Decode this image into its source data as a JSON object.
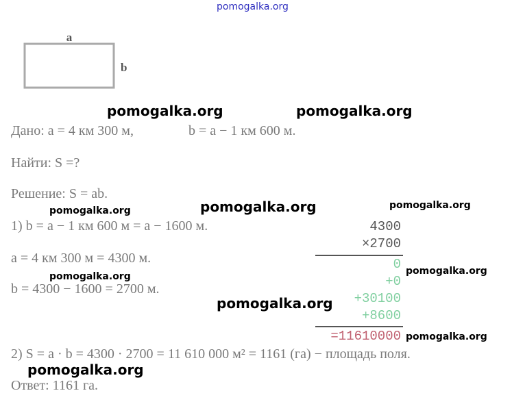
{
  "header": {
    "site": "pomogalka.org"
  },
  "figure": {
    "side_a": "a",
    "side_b": "b"
  },
  "watermarks": [
    "pomogalka.org",
    "pomogalka.org",
    "pomogalka.org",
    "pomogalka.org",
    "pomogalka.org",
    "pomogalka.org",
    "pomogalka.org",
    "pomogalka.org",
    "pomogalka.org",
    "pomogalka.org"
  ],
  "solution": {
    "given_a": "Дано: a = 4 км 300 м,",
    "given_b": "b = a − 1 км 600 м.",
    "find": "Найти: S =?",
    "solution": "Решение: S = ab.",
    "step1": "1) b = a − 1 км 600 м = a − 1600 м.",
    "step1a": "a = 4 км 300 м = 4300 м.",
    "step1b": "b = 4300 − 1600 = 2700 м.",
    "step2": "2) S = a · b = 4300 · 2700 = 11 610 000 м² = 1161 (га) − площадь поля.",
    "answer": "Ответ: 1161 га."
  },
  "multiplication": {
    "factor1": "4300",
    "factor2": "×2700",
    "partials": [
      "0",
      "+0",
      "+30100",
      "+8600"
    ],
    "result": "=11610000"
  }
}
